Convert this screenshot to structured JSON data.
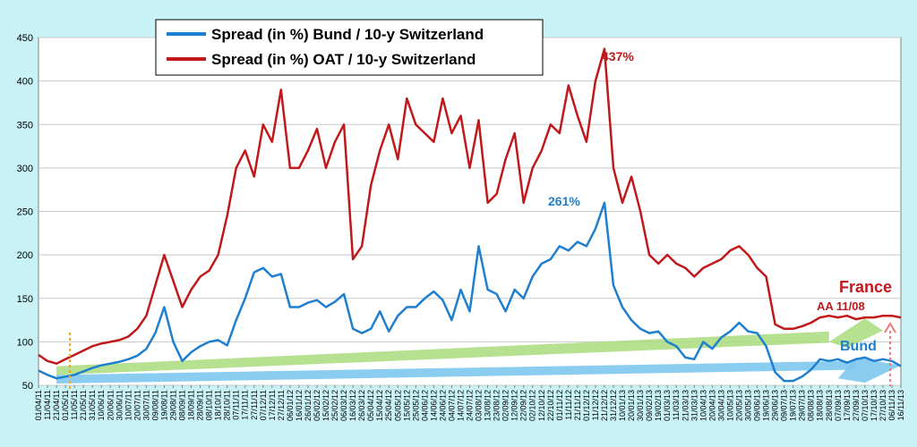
{
  "chart_data": {
    "type": "line",
    "ylim": [
      50,
      450
    ],
    "yticks": [
      "450",
      "400",
      "350",
      "300",
      "250",
      "200",
      "150",
      "100",
      "50"
    ],
    "x": [
      "01/04/11",
      "11/04/11",
      "21/04/11",
      "01/05/11",
      "11/05/11",
      "21/05/11",
      "31/05/11",
      "10/06/11",
      "20/06/11",
      "30/06/11",
      "10/07/11",
      "20/07/11",
      "30/07/11",
      "09/08/11",
      "19/08/11",
      "29/08/11",
      "08/09/11",
      "18/09/11",
      "28/09/11",
      "08/10/11",
      "18/10/11",
      "28/10/11",
      "07/11/11",
      "17/11/11",
      "27/11/11",
      "07/12/11",
      "17/12/11",
      "27/12/11",
      "06/01/12",
      "16/01/12",
      "26/01/12",
      "05/02/12",
      "15/02/12",
      "25/02/12",
      "06/03/12",
      "16/03/12",
      "26/03/12",
      "05/04/12",
      "15/04/12",
      "25/04/12",
      "05/05/12",
      "15/05/12",
      "25/05/12",
      "04/06/12",
      "14/06/12",
      "24/06/12",
      "04/07/12",
      "14/07/12",
      "24/07/12",
      "03/08/12",
      "13/08/12",
      "23/08/12",
      "02/09/12",
      "12/09/12",
      "22/09/12",
      "02/10/12",
      "12/10/12",
      "22/10/12",
      "01/11/12",
      "11/11/12",
      "21/11/12",
      "01/12/12",
      "11/12/12",
      "21/12/12",
      "31/12/12",
      "10/01/13",
      "20/01/13",
      "30/01/13",
      "09/02/13",
      "19/02/13",
      "01/03/13",
      "11/03/13",
      "21/03/13",
      "31/03/13",
      "10/04/13",
      "20/04/13",
      "30/04/13",
      "10/05/13",
      "20/05/13",
      "30/05/13",
      "09/06/13",
      "19/06/13",
      "29/06/13",
      "09/07/13",
      "19/07/13",
      "29/07/13",
      "08/08/13",
      "18/08/13",
      "28/08/13",
      "07/09/13",
      "17/09/13",
      "27/09/13",
      "07/10/13",
      "17/10/13",
      "27/10/13",
      "06/11/13",
      "16/11/13"
    ],
    "series": [
      {
        "name": "Spread (in %) Bund / 10-y Switzerland",
        "color": "#1f7fcf",
        "values": [
          67,
          62,
          58,
          60,
          62,
          66,
          70,
          73,
          75,
          77,
          80,
          84,
          92,
          110,
          140,
          100,
          78,
          88,
          95,
          100,
          102,
          96,
          125,
          150,
          180,
          185,
          175,
          178,
          140,
          140,
          145,
          148,
          140,
          146,
          155,
          115,
          110,
          115,
          135,
          112,
          130,
          140,
          140,
          150,
          158,
          148,
          125,
          160,
          135,
          210,
          160,
          155,
          135,
          160,
          150,
          175,
          190,
          195,
          210,
          205,
          215,
          210,
          230,
          260,
          165,
          140,
          125,
          115,
          110,
          112,
          100,
          95,
          82,
          80,
          100,
          92,
          105,
          112,
          122,
          112,
          110,
          95,
          65,
          55,
          55,
          60,
          68,
          80,
          78,
          80,
          76,
          80,
          82,
          78,
          80,
          78,
          72
        ]
      },
      {
        "name": "Spread (in %) OAT / 10-y Switzerland",
        "color": "#c0181b",
        "values": [
          85,
          78,
          75,
          80,
          85,
          90,
          95,
          98,
          100,
          102,
          106,
          115,
          130,
          165,
          200,
          170,
          140,
          160,
          175,
          182,
          200,
          245,
          300,
          320,
          290,
          350,
          330,
          390,
          300,
          300,
          320,
          345,
          300,
          330,
          350,
          195,
          210,
          280,
          320,
          350,
          310,
          380,
          350,
          340,
          330,
          380,
          340,
          360,
          300,
          355,
          260,
          270,
          310,
          340,
          260,
          300,
          320,
          350,
          340,
          395,
          360,
          330,
          400,
          437,
          300,
          260,
          290,
          250,
          200,
          190,
          200,
          190,
          185,
          175,
          185,
          190,
          195,
          205,
          210,
          200,
          185,
          175,
          120,
          115,
          115,
          118,
          122,
          128,
          130,
          128,
          130,
          126,
          128,
          128,
          130,
          130,
          128
        ]
      }
    ],
    "legend": {
      "bund": "Spread (in %) Bund / 10-y Switzerland",
      "oat": "Spread (in %) OAT / 10-y Switzerland"
    },
    "annotations": {
      "oat_peak": "437%",
      "bund_peak": "261%",
      "france": "France",
      "aa": "AA 11/08",
      "bund": "Bund"
    },
    "colors": {
      "bund": "#1f7fcf",
      "oat": "#c0181b",
      "plot_bg": "#ffffff",
      "page_bg": "#c9f2f6",
      "green_band": "#a8dc7e",
      "blue_band": "#7ec8ee",
      "france_text": "#c0181b",
      "bund_text": "#1f7fcf"
    },
    "grid": true,
    "legend_position": "top-center"
  }
}
